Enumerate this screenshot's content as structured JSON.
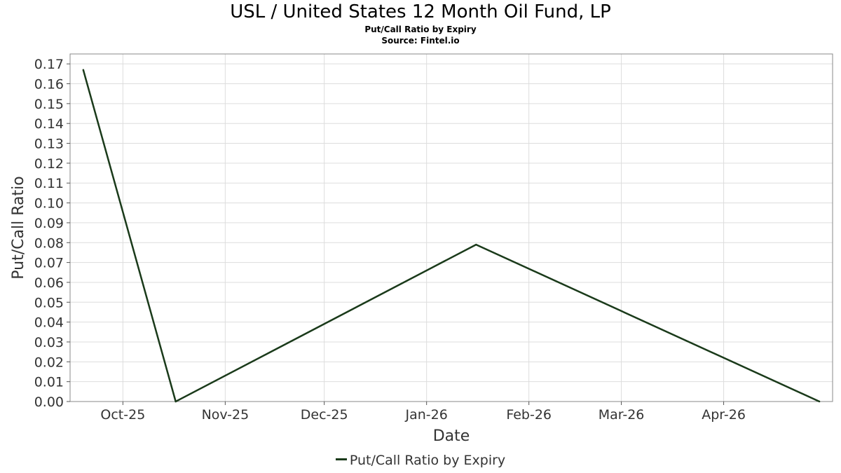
{
  "title": "USL / United States 12 Month Oil Fund, LP",
  "subtitle": "Put/Call Ratio by Expiry",
  "source": "Source: Fintel.io",
  "chart_data": {
    "type": "line",
    "xlabel": "Date",
    "ylabel": "Put/Call Ratio",
    "x_ticks": [
      {
        "date": "2025-10-01",
        "label": "Oct-25"
      },
      {
        "date": "2025-11-01",
        "label": "Nov-25"
      },
      {
        "date": "2025-12-01",
        "label": "Dec-25"
      },
      {
        "date": "2026-01-01",
        "label": "Jan-26"
      },
      {
        "date": "2026-02-01",
        "label": "Feb-26"
      },
      {
        "date": "2026-03-01",
        "label": "Mar-26"
      },
      {
        "date": "2026-04-01",
        "label": "Apr-26"
      }
    ],
    "xlim": [
      "2025-09-15",
      "2026-05-04"
    ],
    "ylim": [
      0,
      0.175
    ],
    "y_ticks": [
      "0.00",
      "0.01",
      "0.02",
      "0.03",
      "0.04",
      "0.05",
      "0.06",
      "0.07",
      "0.08",
      "0.09",
      "0.10",
      "0.11",
      "0.12",
      "0.13",
      "0.14",
      "0.15",
      "0.16",
      "0.17"
    ],
    "grid": true,
    "legend_position": "bottom-center",
    "series": [
      {
        "name": "Put/Call Ratio by Expiry",
        "color": "#1a3a1a",
        "x": [
          "2025-09-19",
          "2025-10-17",
          "2026-01-16",
          "2026-04-30"
        ],
        "y": [
          0.167,
          0.0,
          0.079,
          0.0
        ]
      }
    ]
  }
}
